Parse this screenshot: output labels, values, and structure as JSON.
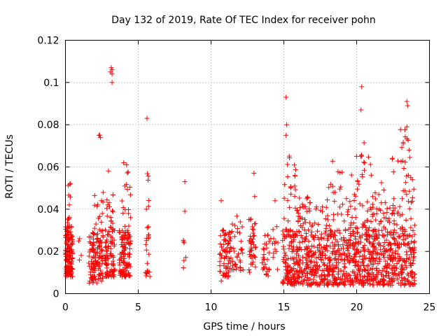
{
  "chart_data": {
    "type": "scatter",
    "title": "Day 132 of 2019, Rate Of TEC Index for receiver pohn",
    "xlabel": "GPS time / hours",
    "ylabel": "ROTI / TECUs",
    "xlim": [
      0,
      25
    ],
    "ylim": [
      0,
      0.12
    ],
    "xticks": [
      0,
      5,
      10,
      15,
      20,
      25
    ],
    "yticks": [
      0,
      0.02,
      0.04,
      0.06,
      0.08,
      0.1,
      0.12
    ],
    "xtick_labels": [
      "0",
      "5",
      "10",
      "15",
      "20",
      "25"
    ],
    "ytick_labels": [
      "0",
      "0.02",
      "0.04",
      "0.06",
      "0.08",
      "0.1",
      "0.12"
    ],
    "grid": true,
    "marker": "+",
    "marker_color": "#ff0000",
    "series": [
      {
        "name": "ROTI",
        "clusters": [
          {
            "x_range": [
              0.0,
              0.5
            ],
            "y_range": [
              0.008,
              0.032
            ],
            "count": 140
          },
          {
            "x_range": [
              0.1,
              0.4
            ],
            "y_range": [
              0.032,
              0.055
            ],
            "count": 12
          },
          {
            "x_range": [
              0.9,
              1.1
            ],
            "y_range": [
              0.015,
              0.045
            ],
            "count": 4
          },
          {
            "x_range": [
              1.6,
              2.6
            ],
            "y_range": [
              0.005,
              0.03
            ],
            "count": 120
          },
          {
            "x_range": [
              2.0,
              2.6
            ],
            "y_range": [
              0.03,
              0.048
            ],
            "count": 14
          },
          {
            "x_range": [
              2.7,
              3.4
            ],
            "y_range": [
              0.008,
              0.032
            ],
            "count": 90
          },
          {
            "x_range": [
              2.8,
              3.3
            ],
            "y_range": [
              0.032,
              0.06
            ],
            "count": 14
          },
          {
            "x_range": [
              3.7,
              4.5
            ],
            "y_range": [
              0.008,
              0.03
            ],
            "count": 110
          },
          {
            "x_range": [
              3.8,
              4.5
            ],
            "y_range": [
              0.03,
              0.062
            ],
            "count": 16
          },
          {
            "x_range": [
              5.5,
              5.8
            ],
            "y_range": [
              0.008,
              0.035
            ],
            "count": 22
          },
          {
            "x_range": [
              5.5,
              5.8
            ],
            "y_range": [
              0.04,
              0.058
            ],
            "count": 6
          },
          {
            "x_range": [
              8.1,
              8.3
            ],
            "y_range": [
              0.012,
              0.028
            ],
            "count": 6
          },
          {
            "x_range": [
              10.6,
              11.4
            ],
            "y_range": [
              0.008,
              0.032
            ],
            "count": 70
          },
          {
            "x_range": [
              11.4,
              12.2
            ],
            "y_range": [
              0.01,
              0.038
            ],
            "count": 35
          },
          {
            "x_range": [
              12.6,
              13.1
            ],
            "y_range": [
              0.01,
              0.036
            ],
            "count": 40
          },
          {
            "x_range": [
              13.5,
              14.0
            ],
            "y_range": [
              0.008,
              0.03
            ],
            "count": 28
          },
          {
            "x_range": [
              14.1,
              14.6
            ],
            "y_range": [
              0.01,
              0.032
            ],
            "count": 14
          },
          {
            "x_range": [
              14.9,
              24.0
            ],
            "y_range": [
              0.004,
              0.03
            ],
            "count": 950
          },
          {
            "x_range": [
              15.0,
              24.0
            ],
            "y_range": [
              0.03,
              0.048
            ],
            "count": 170
          },
          {
            "x_range": [
              15.0,
              16.2
            ],
            "y_range": [
              0.048,
              0.068
            ],
            "count": 14
          },
          {
            "x_range": [
              18.0,
              24.0
            ],
            "y_range": [
              0.048,
              0.066
            ],
            "count": 30
          },
          {
            "x_range": [
              20.0,
              20.6
            ],
            "y_range": [
              0.05,
              0.074
            ],
            "count": 10
          },
          {
            "x_range": [
              23.0,
              23.8
            ],
            "y_range": [
              0.05,
              0.078
            ],
            "count": 14
          }
        ],
        "points": [
          [
            2.3,
            0.075
          ],
          [
            2.4,
            0.074
          ],
          [
            2.35,
            0.075
          ],
          [
            3.15,
            0.107
          ],
          [
            3.2,
            0.106
          ],
          [
            3.1,
            0.105
          ],
          [
            3.2,
            0.104
          ],
          [
            3.2,
            0.1
          ],
          [
            5.6,
            0.083
          ],
          [
            15.15,
            0.093
          ],
          [
            15.2,
            0.08
          ],
          [
            15.15,
            0.075
          ],
          [
            20.35,
            0.098
          ],
          [
            20.3,
            0.087
          ],
          [
            23.45,
            0.091
          ],
          [
            23.5,
            0.089
          ],
          [
            23.45,
            0.079
          ],
          [
            8.2,
            0.053
          ],
          [
            8.2,
            0.039
          ],
          [
            10.7,
            0.044
          ],
          [
            12.95,
            0.057
          ],
          [
            13.0,
            0.046
          ],
          [
            14.4,
            0.044
          ],
          [
            10.7,
            0.006
          ],
          [
            4.0,
            0.062
          ],
          [
            4.2,
            0.061
          ],
          [
            23.2,
            0.071
          ],
          [
            23.6,
            0.068
          ]
        ]
      }
    ]
  }
}
